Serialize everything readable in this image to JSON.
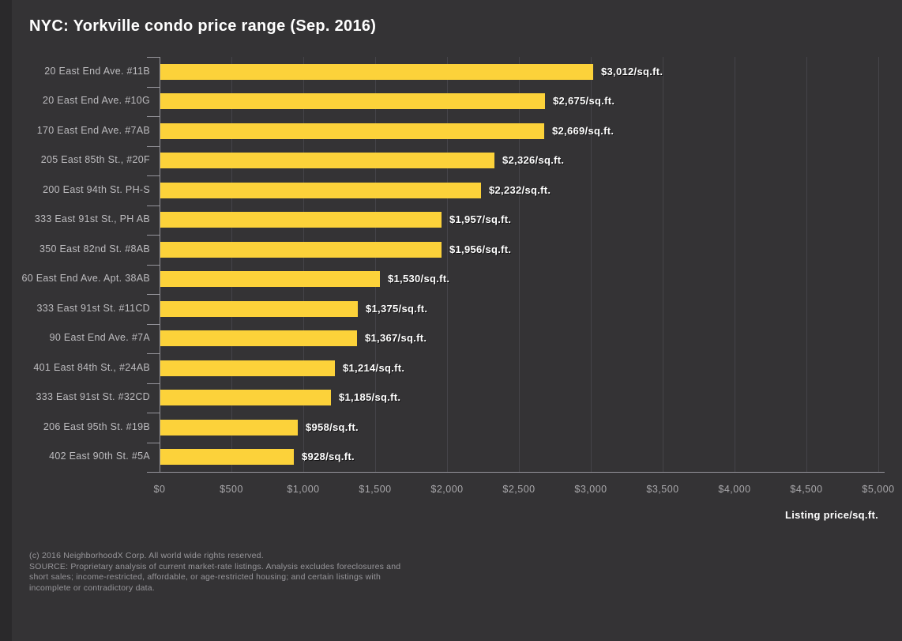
{
  "title": "NYC: Yorkville condo price range (Sep. 2016)",
  "colors": {
    "background": "#343335",
    "left_strip": "#2a292b",
    "bar": "#fcd23a",
    "gridline": "#454449",
    "axis": "#96959c",
    "category_label": "#bdbcbf",
    "value_label": "#ffffff",
    "tick_label": "#a9a8ab",
    "footer_text": "#97969a",
    "title_text": "#ffffff"
  },
  "chart_data": {
    "type": "bar",
    "orientation": "horizontal",
    "title": "NYC: Yorkville condo price range (Sep. 2016)",
    "categories": [
      "20 East End Ave. #11B",
      "20 East End Ave. #10G",
      "170 East End Ave. #7AB",
      "205 East 85th St., #20F",
      "200 East 94th St. PH-S",
      "333 East 91st St., PH AB",
      "350 East 82nd St. #8AB",
      "60 East End Ave. Apt. 38AB",
      "333 East 91st St. #11CD",
      "90 East End Ave. #7A",
      "401 East 84th St., #24AB",
      "333 East 91st St. #32CD",
      "206 East 95th St. #19B",
      "402 East 90th St. #5A"
    ],
    "values": [
      3012,
      2675,
      2669,
      2326,
      2232,
      1957,
      1956,
      1530,
      1375,
      1367,
      1214,
      1185,
      958,
      928
    ],
    "value_labels": [
      "$3,012/sq.ft.",
      "$2,675/sq.ft.",
      "$2,669/sq.ft.",
      "$2,326/sq.ft.",
      "$2,232/sq.ft.",
      "$1,957/sq.ft.",
      "$1,956/sq.ft.",
      "$1,530/sq.ft.",
      "$1,375/sq.ft.",
      "$1,367/sq.ft.",
      "$1,214/sq.ft.",
      "$1,185/sq.ft.",
      "$958/sq.ft.",
      "$928/sq.ft."
    ],
    "xlabel": "Listing price/sq.ft.",
    "xlim": [
      0,
      5000
    ],
    "x_tick_values": [
      0,
      500,
      1000,
      1500,
      2000,
      2500,
      3000,
      3500,
      4000,
      4500,
      5000
    ],
    "x_tick_labels": [
      "$0",
      "$500",
      "$1,000",
      "$1,500",
      "$2,000",
      "$2,500",
      "$3,000",
      "$3,500",
      "$4,000",
      "$4,500",
      "$5,000"
    ],
    "grid": "vertical",
    "legend": "none"
  },
  "footer": {
    "lines": [
      "(c) 2016 NeighborhoodX Corp. All world wide rights reserved.",
      "SOURCE: Proprietary analysis of current market-rate listings. Analysis excludes foreclosures and",
      "short sales; income-restricted, affordable, or age-restricted housing; and certain listings with",
      "incomplete or contradictory data."
    ]
  }
}
